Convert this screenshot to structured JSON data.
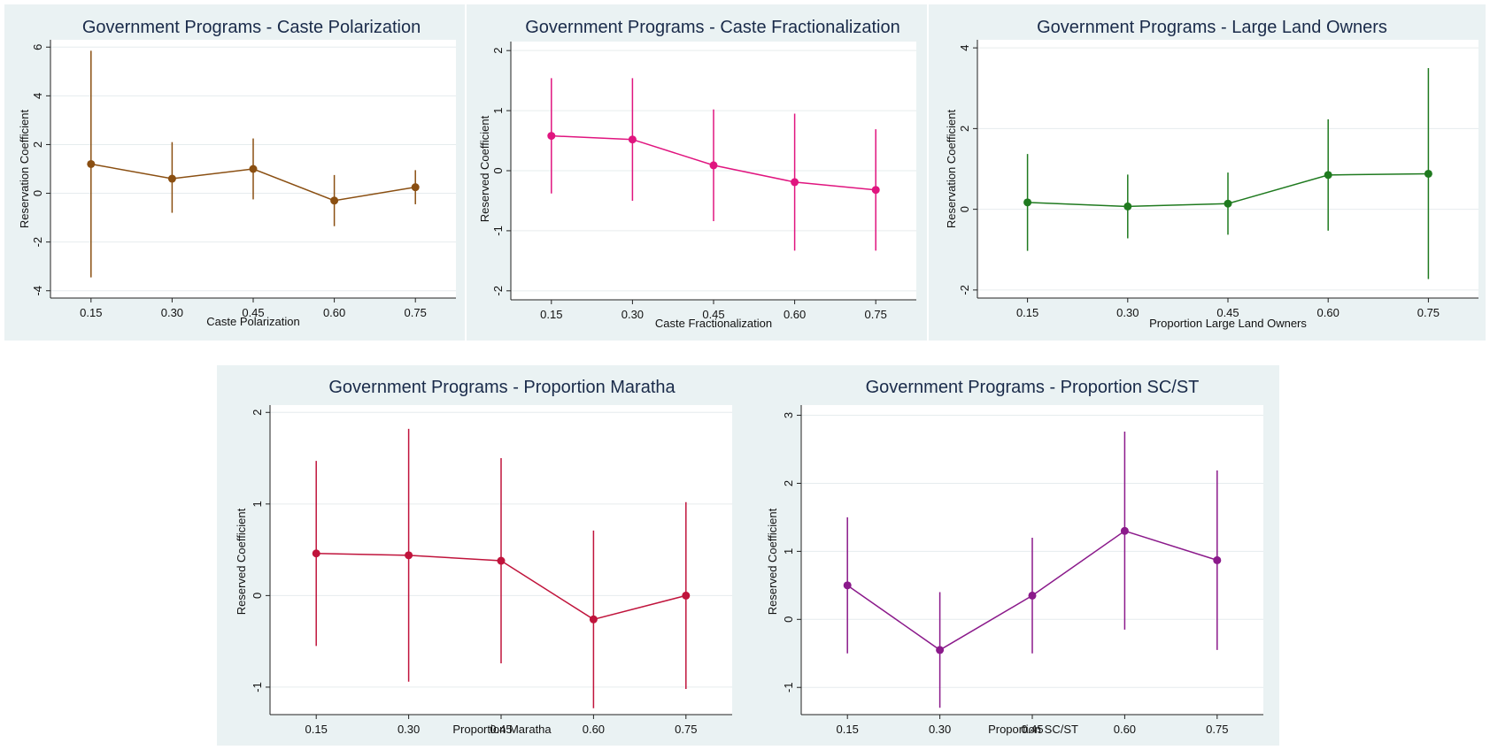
{
  "chart_data": [
    {
      "type": "line",
      "title": "Government Programs - Caste Polarization",
      "xlabel": "Caste Polarization",
      "ylabel": "Reservation Coefficient",
      "color": "#8a4f12",
      "xlim": [
        0.075,
        0.825
      ],
      "ylim": [
        -4.3,
        6.3
      ],
      "x_ticks": [
        "0.15",
        "0.30",
        "0.45",
        "0.60",
        "0.75"
      ],
      "y_ticks": [
        "-4",
        "-2",
        "0",
        "2",
        "4",
        "6"
      ],
      "series": [
        {
          "x": [
            0.15,
            0.3,
            0.45,
            0.6,
            0.75
          ],
          "y": [
            1.2,
            0.6,
            1.0,
            -0.3,
            0.25
          ],
          "lo": [
            -3.45,
            -0.8,
            -0.25,
            -1.35,
            -0.45
          ],
          "hi": [
            5.85,
            2.1,
            2.25,
            0.75,
            0.95
          ]
        }
      ]
    },
    {
      "type": "line",
      "title": "Government Programs - Caste Fractionalization",
      "xlabel": "Caste Fractionalization",
      "ylabel": "Reserved Coefficient",
      "color": "#e0157f",
      "xlim": [
        0.075,
        0.825
      ],
      "ylim": [
        -2.15,
        2.15
      ],
      "x_ticks": [
        "0.15",
        "0.30",
        "0.45",
        "0.60",
        "0.75"
      ],
      "y_ticks": [
        "-2",
        "-1",
        "0",
        "1",
        "2"
      ],
      "series": [
        {
          "x": [
            0.15,
            0.3,
            0.45,
            0.6,
            0.75
          ],
          "y": [
            0.58,
            0.52,
            0.09,
            -0.19,
            -0.32
          ],
          "lo": [
            -0.38,
            -0.5,
            -0.84,
            -1.33,
            -1.33
          ],
          "hi": [
            1.54,
            1.54,
            1.02,
            0.95,
            0.69
          ]
        }
      ]
    },
    {
      "type": "line",
      "title": "Government Programs - Large Land Owners",
      "xlabel": "Proportion Large Land Owners",
      "ylabel": "Reservation Coefficient",
      "color": "#1f7a1f",
      "xlim": [
        0.075,
        0.825
      ],
      "ylim": [
        -2.2,
        4.2
      ],
      "x_ticks": [
        "0.15",
        "0.30",
        "0.45",
        "0.60",
        "0.75"
      ],
      "y_ticks": [
        "-2",
        "0",
        "2",
        "4"
      ],
      "series": [
        {
          "x": [
            0.15,
            0.3,
            0.45,
            0.6,
            0.75
          ],
          "y": [
            0.17,
            0.07,
            0.14,
            0.85,
            0.88
          ],
          "lo": [
            -1.03,
            -0.72,
            -0.63,
            -0.53,
            -1.73
          ],
          "hi": [
            1.37,
            0.86,
            0.91,
            2.23,
            3.5
          ]
        }
      ]
    },
    {
      "type": "line",
      "title": "Government Programs - Proportion Maratha",
      "xlabel": "Proportion Maratha",
      "ylabel": "Reserved Coefficient",
      "color": "#c0143c",
      "xlim": [
        0.075,
        0.825
      ],
      "ylim": [
        -1.3,
        2.08
      ],
      "x_ticks": [
        "0.15",
        "0.30",
        "0.45",
        "0.60",
        "0.75"
      ],
      "y_ticks": [
        "-1",
        "0",
        "1",
        "2"
      ],
      "series": [
        {
          "x": [
            0.15,
            0.3,
            0.45,
            0.6,
            0.75
          ],
          "y": [
            0.46,
            0.44,
            0.38,
            -0.26,
            0.0
          ],
          "lo": [
            -0.55,
            -0.94,
            -0.74,
            -1.23,
            -1.02
          ],
          "hi": [
            1.47,
            1.82,
            1.5,
            0.71,
            1.02
          ]
        }
      ]
    },
    {
      "type": "line",
      "title": "Government Programs - Proportion SC/ST",
      "xlabel": "Proportion SC/ST",
      "ylabel": "Reserved Coefficient",
      "color": "#8b1a8b",
      "xlim": [
        0.075,
        0.825
      ],
      "ylim": [
        -1.4,
        3.15
      ],
      "x_ticks": [
        "0.15",
        "0.30",
        "0.45",
        "0.60",
        "0.75"
      ],
      "y_ticks": [
        "-1",
        "0",
        "1",
        "2",
        "3"
      ],
      "series": [
        {
          "x": [
            0.15,
            0.3,
            0.45,
            0.6,
            0.75
          ],
          "y": [
            0.5,
            -0.45,
            0.35,
            1.3,
            0.87
          ],
          "lo": [
            -0.5,
            -1.3,
            -0.5,
            -0.15,
            -0.45
          ],
          "hi": [
            1.5,
            0.4,
            1.2,
            2.76,
            2.19
          ]
        }
      ]
    }
  ]
}
